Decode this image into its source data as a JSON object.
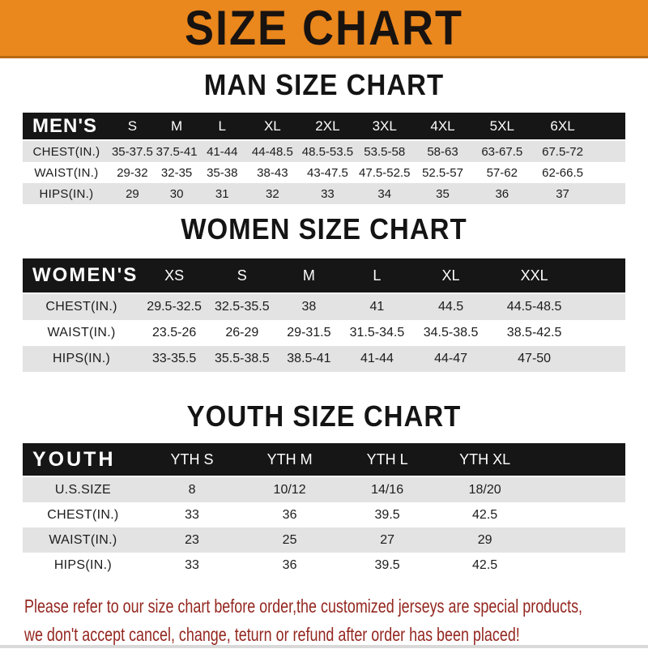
{
  "banner": {
    "title": "SIZE CHART",
    "bg": "#EA871D",
    "border": "#B96A12"
  },
  "chart_data": [
    {
      "type": "table",
      "title": "MAN SIZE CHART",
      "header_label": "MEN'S",
      "columns": [
        "S",
        "M",
        "L",
        "XL",
        "2XL",
        "3XL",
        "4XL",
        "5XL",
        "6XL"
      ],
      "rows": [
        {
          "label": "CHEST(IN.)",
          "values": [
            "35-37.5",
            "37.5-41",
            "41-44",
            "44-48.5",
            "48.5-53.5",
            "53.5-58",
            "58-63",
            "63-67.5",
            "67.5-72"
          ]
        },
        {
          "label": "WAIST(IN.)",
          "values": [
            "29-32",
            "32-35",
            "35-38",
            "38-43",
            "43-47.5",
            "47.5-52.5",
            "52.5-57",
            "57-62",
            "62-66.5"
          ]
        },
        {
          "label": "HIPS(IN.)",
          "values": [
            "29",
            "30",
            "31",
            "32",
            "33",
            "34",
            "35",
            "36",
            "37"
          ]
        }
      ]
    },
    {
      "type": "table",
      "title": "WOMEN SIZE CHART",
      "header_label": "WOMEN'S",
      "columns": [
        "XS",
        "S",
        "M",
        "L",
        "XL",
        "XXL"
      ],
      "rows": [
        {
          "label": "CHEST(IN.)",
          "values": [
            "29.5-32.5",
            "32.5-35.5",
            "38",
            "41",
            "44.5",
            "44.5-48.5"
          ]
        },
        {
          "label": "WAIST(IN.)",
          "values": [
            "23.5-26",
            "26-29",
            "29-31.5",
            "31.5-34.5",
            "34.5-38.5",
            "38.5-42.5"
          ]
        },
        {
          "label": "HIPS(IN.)",
          "values": [
            "33-35.5",
            "35.5-38.5",
            "38.5-41",
            "41-44",
            "44-47",
            "47-50"
          ]
        }
      ]
    },
    {
      "type": "table",
      "title": "YOUTH SIZE CHART",
      "header_label": "YOUTH",
      "columns": [
        "YTH S",
        "YTH M",
        "YTH L",
        "YTH XL"
      ],
      "rows": [
        {
          "label": "U.S.SIZE",
          "values": [
            "8",
            "10/12",
            "14/16",
            "18/20"
          ]
        },
        {
          "label": "CHEST(IN.)",
          "values": [
            "33",
            "36",
            "39.5",
            "42.5"
          ]
        },
        {
          "label": "WAIST(IN.)",
          "values": [
            "23",
            "25",
            "27",
            "29"
          ]
        },
        {
          "label": "HIPS(IN.)",
          "values": [
            "33",
            "36",
            "39.5",
            "42.5"
          ]
        }
      ]
    }
  ],
  "footer": {
    "line1": "Please refer to our size chart before order,the customized jerseys are special products,",
    "line2": "we don't accept cancel, change, teturn or refund after order has been placed!",
    "color": "#942720"
  }
}
